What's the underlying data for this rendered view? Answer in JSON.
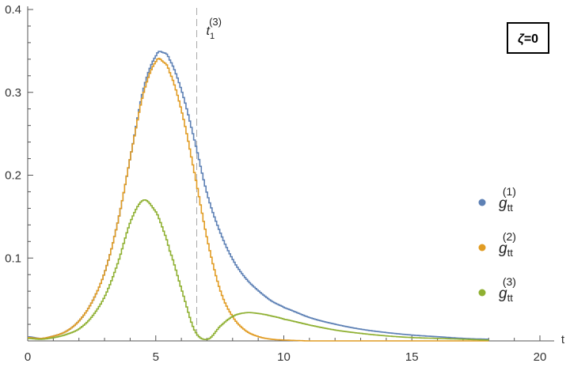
{
  "chart_data": {
    "type": "line",
    "xlabel": "t",
    "ylabel": "",
    "xlim": [
      0,
      20
    ],
    "ylim": [
      0,
      0.4
    ],
    "x_ticks": [
      0,
      5,
      10,
      15,
      20
    ],
    "x_tick_labels": [
      "0",
      "5",
      "10",
      "15",
      "20"
    ],
    "y_ticks": [
      0.1,
      0.2,
      0.3,
      0.4
    ],
    "y_tick_labels": [
      "0.1",
      "0.2",
      "0.3",
      "0.4"
    ],
    "grid": false,
    "legend_placement": "right",
    "annotation": {
      "greek": "ζ",
      "rest": "=0"
    },
    "reference_line": {
      "x": 6.6,
      "label_base": "t",
      "label_sub": "1",
      "label_sup": "(3)"
    },
    "x": [
      0,
      0.5,
      1,
      1.5,
      2,
      2.5,
      3,
      3.5,
      4,
      4.5,
      5,
      5.25,
      5.5,
      6,
      6.5,
      7,
      7.5,
      8,
      8.5,
      9,
      9.5,
      10,
      11,
      12,
      13,
      14,
      15,
      16,
      17,
      18
    ],
    "series": [
      {
        "name_base": "g",
        "name_sub": "tt",
        "name_sup": "(1)",
        "color": "#5e81b5",
        "values": [
          0.005,
          0.003,
          0.006,
          0.012,
          0.025,
          0.048,
          0.085,
          0.145,
          0.225,
          0.305,
          0.345,
          0.348,
          0.34,
          0.3,
          0.24,
          0.175,
          0.13,
          0.097,
          0.075,
          0.06,
          0.048,
          0.04,
          0.028,
          0.02,
          0.014,
          0.01,
          0.007,
          0.005,
          0.003,
          0.002
        ]
      },
      {
        "name_base": "g",
        "name_sub": "tt",
        "name_sup": "(2)",
        "color": "#e19c24",
        "values": [
          0.004,
          0.003,
          0.006,
          0.012,
          0.025,
          0.048,
          0.085,
          0.145,
          0.225,
          0.3,
          0.338,
          0.337,
          0.325,
          0.275,
          0.2,
          0.12,
          0.06,
          0.028,
          0.012,
          0.005,
          0.002,
          0.001,
          0,
          0,
          0,
          0,
          0,
          0,
          0,
          0
        ]
      },
      {
        "name_base": "g",
        "name_sub": "tt",
        "name_sup": "(3)",
        "color": "#8fb032",
        "values": [
          0.003,
          0.002,
          0.004,
          0.008,
          0.015,
          0.03,
          0.055,
          0.095,
          0.145,
          0.17,
          0.155,
          0.135,
          0.11,
          0.06,
          0.012,
          0.002,
          0.018,
          0.03,
          0.034,
          0.033,
          0.03,
          0.026,
          0.019,
          0.013,
          0.009,
          0.006,
          0.004,
          0.003,
          0.002,
          0.001
        ]
      }
    ]
  }
}
